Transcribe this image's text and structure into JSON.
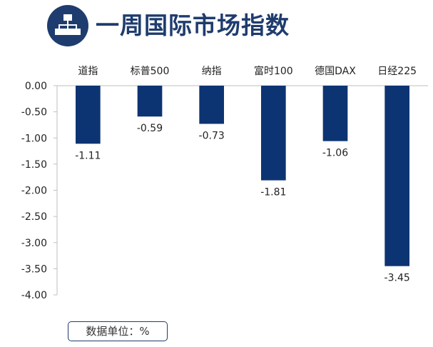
{
  "header": {
    "title": "一周国际市场指数",
    "icon": "org-chart-icon",
    "accent_color": "#1f3c6e"
  },
  "unit_note": "数据单位：%",
  "chart_data": {
    "type": "bar",
    "title": "",
    "xlabel": "",
    "ylabel": "",
    "categories": [
      "道指",
      "标普500",
      "纳指",
      "富时100",
      "德国DAX",
      "日经225"
    ],
    "values": [
      -1.11,
      -0.59,
      -0.73,
      -1.81,
      -1.06,
      -3.45
    ],
    "value_labels": [
      "-1.11",
      "-0.59",
      "-0.73",
      "-1.81",
      "-1.06",
      "-3.45"
    ],
    "ylim": [
      -4.0,
      0.0
    ],
    "yticks": [
      "0.00",
      "-0.50",
      "-1.00",
      "-1.50",
      "-2.00",
      "-2.50",
      "-3.00",
      "-3.50",
      "-4.00"
    ],
    "category_axis_position": "top",
    "grid": false,
    "bar_color": "#0c3473"
  }
}
